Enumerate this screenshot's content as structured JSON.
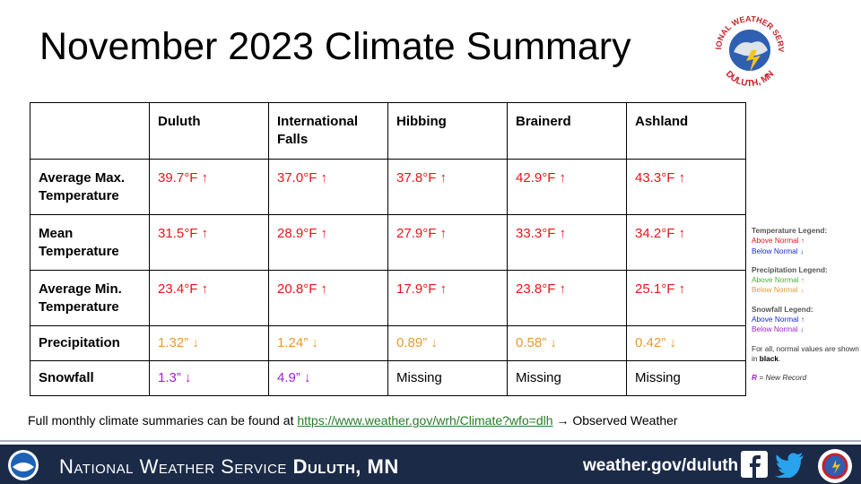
{
  "title": "November 2023 Climate Summary",
  "logo": {
    "top": "NATIONAL WEATHER SERVICE",
    "bottom": "DULUTH, MN"
  },
  "table": {
    "columns": [
      "Duluth",
      "International Falls",
      "Hibbing",
      "Brainerd",
      "Ashland"
    ],
    "rows": [
      {
        "label": "Average Max. Temperature",
        "cells": [
          {
            "text": "39.7°F ↑",
            "color": "#e8141b"
          },
          {
            "text": "37.0°F ↑",
            "color": "#e8141b"
          },
          {
            "text": "37.8°F ↑",
            "color": "#e8141b"
          },
          {
            "text": "42.9°F ↑",
            "color": "#e8141b"
          },
          {
            "text": "43.3°F ↑",
            "color": "#e8141b"
          }
        ]
      },
      {
        "label": "Mean Temperature",
        "cells": [
          {
            "text": "31.5°F ↑",
            "color": "#e8141b"
          },
          {
            "text": "28.9°F ↑",
            "color": "#e8141b"
          },
          {
            "text": "27.9°F ↑",
            "color": "#e8141b"
          },
          {
            "text": "33.3°F ↑",
            "color": "#e8141b"
          },
          {
            "text": "34.2°F ↑",
            "color": "#e8141b"
          }
        ]
      },
      {
        "label": "Average Min. Temperature",
        "cells": [
          {
            "text": "23.4°F ↑",
            "color": "#e8141b"
          },
          {
            "text": "20.8°F ↑",
            "color": "#e8141b"
          },
          {
            "text": "17.9°F ↑",
            "color": "#e8141b"
          },
          {
            "text": "23.8°F ↑",
            "color": "#e8141b"
          },
          {
            "text": "25.1°F ↑",
            "color": "#e8141b"
          }
        ]
      },
      {
        "label": "Precipitation",
        "cells": [
          {
            "text": "1.32” ↓",
            "color": "#e69a2e"
          },
          {
            "text": "1.24” ↓",
            "color": "#e69a2e"
          },
          {
            "text": "0.89” ↓",
            "color": "#e69a2e"
          },
          {
            "text": "0.58” ↓",
            "color": "#e69a2e"
          },
          {
            "text": "0.42” ↓",
            "color": "#e69a2e"
          }
        ]
      },
      {
        "label": "Snowfall",
        "cells": [
          {
            "text": "1.3” ↓",
            "color": "#a020d8"
          },
          {
            "text": "4.9” ↓",
            "color": "#a020d8"
          },
          {
            "text": "Missing",
            "color": "#000000"
          },
          {
            "text": "Missing",
            "color": "#000000"
          },
          {
            "text": "Missing",
            "color": "#000000"
          }
        ]
      }
    ]
  },
  "legend": {
    "sections": [
      {
        "title": "Temperature Legend:",
        "items": [
          {
            "text": "Above Normal ↑",
            "color": "#e8141b"
          },
          {
            "text": "Below Normal ↓",
            "color": "#1a2bd6"
          }
        ]
      },
      {
        "title": "Precipitation Legend:",
        "items": [
          {
            "text": "Above Normal ↑",
            "color": "#4caf3a"
          },
          {
            "text": "Below Normal ↓",
            "color": "#e69a2e"
          }
        ]
      },
      {
        "title": "Snowfall Legend:",
        "items": [
          {
            "text": "Above Normal ↑",
            "color": "#1a2bd6"
          },
          {
            "text": "Below Normal ↓",
            "color": "#a020d8"
          }
        ]
      }
    ],
    "note": {
      "text": "For all, normal values are shown in",
      "emphasis": "black",
      "end": "."
    },
    "record": {
      "symbol": "R",
      "text": "= New Record"
    }
  },
  "footnote": {
    "text": "Full monthly climate summaries can be found at",
    "link": "https://www.weather.gov/wrh/Climate?wfo=dlh",
    "after": "→ Observed Weather"
  },
  "footer": {
    "agency": "National Weather Service",
    "office": "Duluth, MN",
    "url": "weather.gov/duluth"
  }
}
